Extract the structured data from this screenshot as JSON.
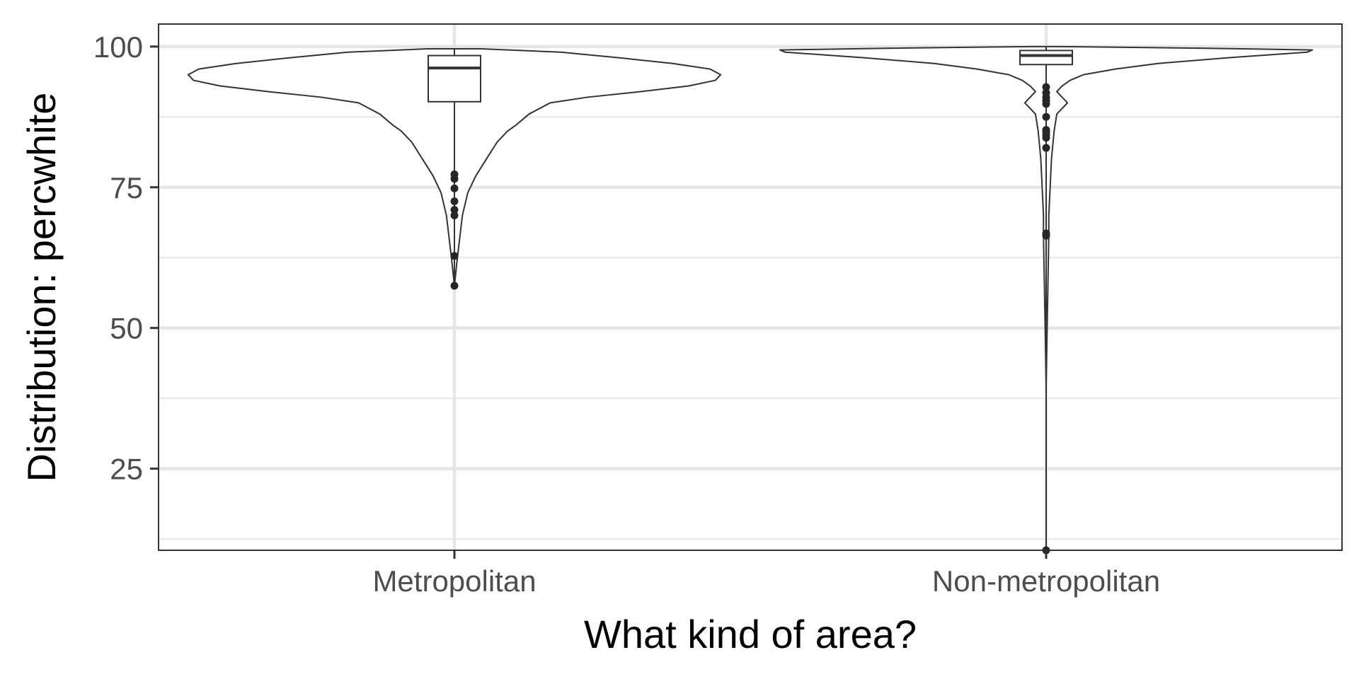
{
  "chart_data": {
    "type": "violin",
    "overlay": "boxplot",
    "xlabel": "What kind of area?",
    "ylabel": "Distribution: percwhite",
    "ylim": [
      10.5,
      104
    ],
    "yticks": [
      25,
      50,
      75,
      100
    ],
    "y_minor_gridlines": [
      12.5,
      37.5,
      62.5,
      87.5
    ],
    "grid": true,
    "theme": "bw",
    "categories": [
      "Metropolitan",
      "Non-metropolitan"
    ],
    "series": [
      {
        "category": "Metropolitan",
        "violin_halfwidth_profile": [
          [
            57.5,
            0.0
          ],
          [
            62,
            0.01
          ],
          [
            66,
            0.02
          ],
          [
            70,
            0.03
          ],
          [
            74,
            0.05
          ],
          [
            77,
            0.08
          ],
          [
            80,
            0.12
          ],
          [
            83,
            0.16
          ],
          [
            85,
            0.2
          ],
          [
            86,
            0.23
          ],
          [
            88,
            0.28
          ],
          [
            90,
            0.36
          ],
          [
            91,
            0.5
          ],
          [
            92,
            0.7
          ],
          [
            93,
            0.88
          ],
          [
            94,
            0.98
          ],
          [
            95,
            1.0
          ],
          [
            96,
            0.96
          ],
          [
            97,
            0.82
          ],
          [
            98,
            0.62
          ],
          [
            99,
            0.4
          ],
          [
            99.6,
            0.1
          ]
        ],
        "box": {
          "lower_whisker": 77.5,
          "q1": 90.2,
          "median": 96.2,
          "q3": 98.4,
          "upper_whisker": 99.6
        },
        "outliers": [
          77.3,
          76.5,
          74.8,
          72.5,
          71.0,
          70.0,
          62.8,
          57.5
        ]
      },
      {
        "category": "Non-metropolitan",
        "violin_halfwidth_profile": [
          [
            10.5,
            0.0
          ],
          [
            40,
            0.0
          ],
          [
            66.5,
            0.01
          ],
          [
            70,
            0.01
          ],
          [
            80,
            0.02
          ],
          [
            85,
            0.03
          ],
          [
            88,
            0.04
          ],
          [
            89,
            0.06
          ],
          [
            90,
            0.08
          ],
          [
            91,
            0.06
          ],
          [
            92,
            0.04
          ],
          [
            93,
            0.06
          ],
          [
            94,
            0.09
          ],
          [
            95,
            0.14
          ],
          [
            96,
            0.26
          ],
          [
            97,
            0.42
          ],
          [
            98,
            0.68
          ],
          [
            99,
            0.98
          ],
          [
            99.4,
            1.0
          ],
          [
            99.7,
            0.6
          ],
          [
            100,
            0.05
          ]
        ],
        "box": {
          "lower_whisker": 93.0,
          "q1": 96.8,
          "median": 98.4,
          "q3": 99.3,
          "upper_whisker": 100.0
        },
        "outliers": [
          92.8,
          91.8,
          91.0,
          90.4,
          89.8,
          87.5,
          85.2,
          84.8,
          84.3,
          83.8,
          82.0,
          66.8,
          66.4,
          10.5
        ]
      }
    ]
  }
}
